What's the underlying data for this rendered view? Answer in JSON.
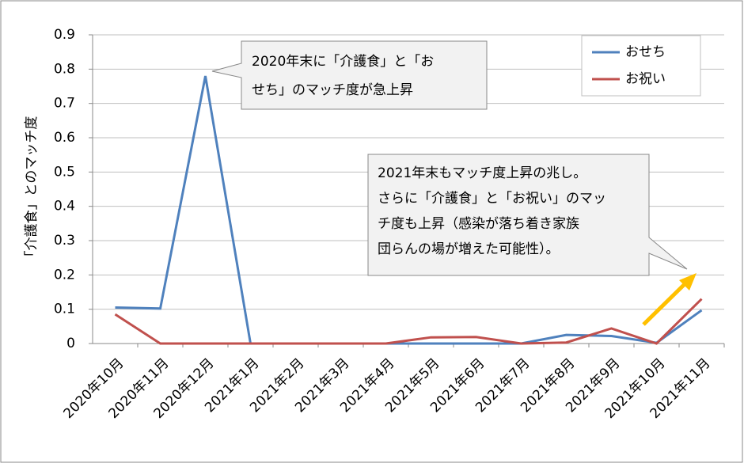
{
  "chart_data": {
    "type": "line",
    "ylabel": "「介護食」とのマッチ度",
    "categories": [
      "2020年10月",
      "2020年11月",
      "2020年12月",
      "2021年1月",
      "2021年2月",
      "2021年3月",
      "2021年4月",
      "2021年5月",
      "2021年6月",
      "2021年7月",
      "2021年8月",
      "2021年9月",
      "2021年10月",
      "2021年11月"
    ],
    "series": [
      {
        "name": "おせち",
        "color": "#4f81bd",
        "values": [
          0.105,
          0.102,
          0.78,
          0,
          0,
          0,
          0,
          0,
          0,
          0,
          0.025,
          0.022,
          0.002,
          0.097
        ]
      },
      {
        "name": "お祝い",
        "color": "#c0504d",
        "values": [
          0.085,
          0,
          0,
          0,
          0,
          0,
          0,
          0.018,
          0.019,
          0,
          0.003,
          0.044,
          0,
          0.13
        ]
      }
    ],
    "ylim": [
      0,
      0.9
    ],
    "yticks": [
      0,
      0.1,
      0.2,
      0.3,
      0.4,
      0.5,
      0.6,
      0.7,
      0.8,
      0.9
    ],
    "grid": true,
    "legend": "top-right",
    "annotations": [
      {
        "lines": [
          "2020年末に「介護食」と「お",
          "せち」のマッチ度が急上昇"
        ]
      },
      {
        "lines": [
          "2021年末もマッチ度上昇の兆し。",
          "さらに「介護食」と「お祝い」のマッ",
          "チ度も上昇（感染が落ち着き家族",
          "団らんの場が増えた可能性）。"
        ]
      }
    ]
  }
}
